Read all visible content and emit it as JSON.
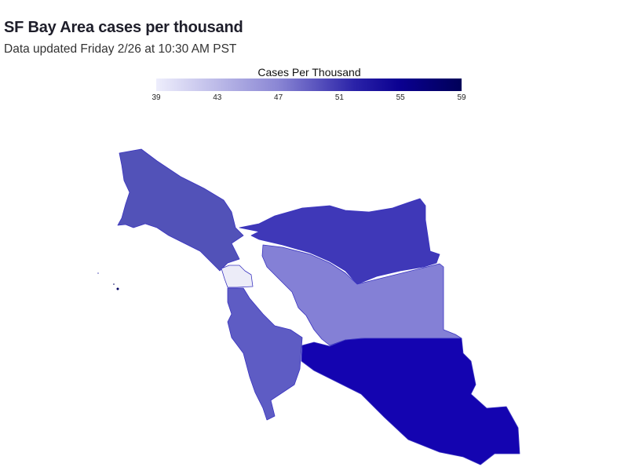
{
  "header": {
    "title": "SF Bay Area cases per thousand",
    "subtitle": "Data updated Friday 2/26 at 10:30 AM PST"
  },
  "legend": {
    "title": "Cases Per Thousand",
    "min": 39,
    "max": 59,
    "ticks": [
      "39",
      "43",
      "47",
      "51",
      "55",
      "59"
    ],
    "color_low": "#eeeefc",
    "color_high": "#000058"
  },
  "chart_data": {
    "type": "choropleth",
    "value_label": "Cases Per Thousand",
    "range": [
      39,
      59
    ],
    "regions": [
      {
        "value": 49,
        "fill": "#5252b8"
      },
      {
        "value": 51,
        "fill": "#3f38b8"
      },
      {
        "value": 46,
        "fill": "#8480d6"
      },
      {
        "value": 40,
        "fill": "#ececf8"
      },
      {
        "value": 48,
        "fill": "#5e5cc4"
      },
      {
        "value": 56,
        "fill": "#1404b0"
      }
    ]
  }
}
